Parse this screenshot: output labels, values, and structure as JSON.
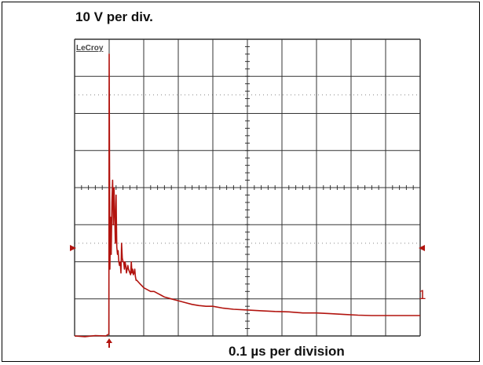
{
  "labels": {
    "vertical_scale": "10 V per div.",
    "horizontal_scale": "0.1 µs per division",
    "brand": "LeCroy",
    "channel": "1"
  },
  "colors": {
    "trace": "#b2140f",
    "grid": "#333333",
    "dotted_grid": "#888888",
    "background": "#ffffff"
  },
  "chart_data": {
    "type": "line",
    "title": "",
    "xlabel": "0.1 µs per division",
    "ylabel": "10 V per div.",
    "x_divisions": 10,
    "y_divisions": 8,
    "xlim": [
      0,
      10
    ],
    "ylim": [
      0,
      8
    ],
    "x_unit": "div (0.1 µs)",
    "y_unit": "div (10 V)",
    "trigger_marker_x": 1.0,
    "ground_marker_y": 1.8,
    "grid": true,
    "series": [
      {
        "values_x": [
          0.0,
          0.3,
          0.6,
          0.9,
          0.99,
          1.0,
          1.02,
          1.04,
          1.06,
          1.08,
          1.1,
          1.12,
          1.14,
          1.16,
          1.18,
          1.2,
          1.22,
          1.24,
          1.26,
          1.28,
          1.3,
          1.32,
          1.34,
          1.36,
          1.38,
          1.4,
          1.42,
          1.44,
          1.46,
          1.48,
          1.5,
          1.52,
          1.54,
          1.56,
          1.58,
          1.6,
          1.62,
          1.64,
          1.66,
          1.68,
          1.7,
          1.72,
          1.74,
          1.76,
          1.78,
          1.8,
          1.85,
          1.9,
          1.95,
          2.0,
          2.1,
          2.2,
          2.3,
          2.4,
          2.5,
          2.6,
          2.8,
          3.0,
          3.2,
          3.4,
          3.6,
          3.8,
          4.0,
          4.3,
          4.6,
          5.0,
          5.4,
          5.8,
          6.2,
          6.6,
          7.0,
          7.4,
          7.8,
          8.2,
          8.6,
          9.0,
          9.4,
          9.8,
          10.0
        ],
        "values_y": [
          0.0,
          -0.02,
          0.01,
          0.0,
          0.05,
          7.6,
          1.8,
          3.2,
          2.2,
          3.6,
          4.2,
          3.0,
          4.0,
          3.3,
          2.5,
          3.8,
          2.4,
          2.2,
          2.3,
          2.0,
          1.9,
          2.0,
          1.7,
          2.5,
          2.1,
          2.0,
          2.0,
          1.8,
          2.0,
          1.9,
          1.7,
          1.8,
          1.9,
          1.8,
          1.75,
          1.7,
          1.65,
          2.0,
          1.7,
          1.8,
          1.65,
          1.7,
          1.8,
          1.6,
          1.5,
          1.5,
          1.45,
          1.4,
          1.35,
          1.3,
          1.25,
          1.2,
          1.2,
          1.15,
          1.1,
          1.05,
          1.0,
          0.95,
          0.9,
          0.85,
          0.82,
          0.8,
          0.8,
          0.75,
          0.72,
          0.7,
          0.68,
          0.66,
          0.65,
          0.62,
          0.62,
          0.6,
          0.58,
          0.56,
          0.55,
          0.55,
          0.55,
          0.55,
          0.55
        ]
      }
    ]
  }
}
